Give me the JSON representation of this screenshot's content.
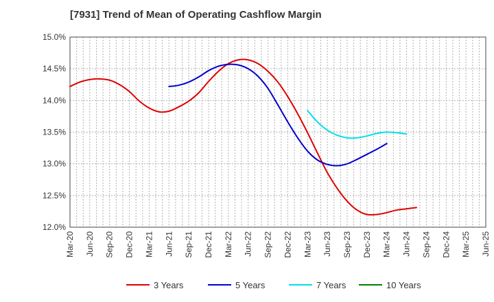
{
  "chart_data": {
    "type": "line",
    "title": "[7931]  Trend of Mean of Operating Cashflow Margin",
    "xlabel": "",
    "ylabel": "",
    "ylim": [
      12.0,
      15.0
    ],
    "yticks": [
      "12.0%",
      "12.5%",
      "13.0%",
      "13.5%",
      "14.0%",
      "14.5%",
      "15.0%"
    ],
    "ytick_values": [
      12.0,
      12.5,
      13.0,
      13.5,
      14.0,
      14.5,
      15.0
    ],
    "grid": true,
    "legend_position": "bottom",
    "x_tick_labels": [
      "Mar-20",
      "Jun-20",
      "Sep-20",
      "Dec-20",
      "Mar-21",
      "Jun-21",
      "Sep-21",
      "Dec-21",
      "Mar-22",
      "Jun-22",
      "Sep-22",
      "Dec-22",
      "Mar-23",
      "Jun-23",
      "Sep-23",
      "Dec-23",
      "Mar-24",
      "Jun-24",
      "Sep-24",
      "Dec-24",
      "Mar-25",
      "Jun-25"
    ],
    "series": [
      {
        "name": "3 Years",
        "color": "#dd0000",
        "points": [
          [
            0,
            14.22
          ],
          [
            1,
            14.29
          ],
          [
            2,
            14.33
          ],
          [
            3,
            14.34
          ],
          [
            4,
            14.32
          ],
          [
            5,
            14.25
          ],
          [
            6,
            14.14
          ],
          [
            7,
            13.99
          ],
          [
            8,
            13.88
          ],
          [
            9,
            13.82
          ],
          [
            10,
            13.83
          ],
          [
            11,
            13.9
          ],
          [
            12,
            13.99
          ],
          [
            13,
            14.12
          ],
          [
            14,
            14.3
          ],
          [
            15,
            14.46
          ],
          [
            16,
            14.58
          ],
          [
            17,
            14.64
          ],
          [
            18,
            14.64
          ],
          [
            19,
            14.58
          ],
          [
            20,
            14.46
          ],
          [
            21,
            14.29
          ],
          [
            22,
            14.06
          ],
          [
            23,
            13.79
          ],
          [
            24,
            13.49
          ],
          [
            25,
            13.17
          ],
          [
            26,
            12.86
          ],
          [
            27,
            12.61
          ],
          [
            28,
            12.41
          ],
          [
            29,
            12.27
          ],
          [
            30,
            12.2
          ],
          [
            31,
            12.2
          ],
          [
            32,
            12.23
          ],
          [
            33,
            12.27
          ],
          [
            34,
            12.29
          ],
          [
            35,
            12.31
          ]
        ]
      },
      {
        "name": "5 Years",
        "color": "#0000cc",
        "points": [
          [
            10,
            14.22
          ],
          [
            11,
            14.24
          ],
          [
            12,
            14.29
          ],
          [
            13,
            14.37
          ],
          [
            14,
            14.47
          ],
          [
            15,
            14.54
          ],
          [
            16,
            14.57
          ],
          [
            17,
            14.56
          ],
          [
            18,
            14.5
          ],
          [
            19,
            14.38
          ],
          [
            20,
            14.19
          ],
          [
            21,
            13.93
          ],
          [
            22,
            13.66
          ],
          [
            23,
            13.41
          ],
          [
            24,
            13.2
          ],
          [
            25,
            13.06
          ],
          [
            26,
            12.99
          ],
          [
            27,
            12.97
          ],
          [
            28,
            13.0
          ],
          [
            29,
            13.07
          ],
          [
            30,
            13.15
          ],
          [
            31,
            13.23
          ],
          [
            32,
            13.32
          ]
        ]
      },
      {
        "name": "7 Years",
        "color": "#00e0e8",
        "points": [
          [
            24,
            13.84
          ],
          [
            25,
            13.66
          ],
          [
            26,
            13.53
          ],
          [
            27,
            13.45
          ],
          [
            28,
            13.41
          ],
          [
            29,
            13.41
          ],
          [
            30,
            13.44
          ],
          [
            31,
            13.48
          ],
          [
            32,
            13.5
          ],
          [
            33,
            13.49
          ],
          [
            34,
            13.47
          ]
        ]
      },
      {
        "name": "10 Years",
        "color": "#008000",
        "points": []
      }
    ]
  }
}
